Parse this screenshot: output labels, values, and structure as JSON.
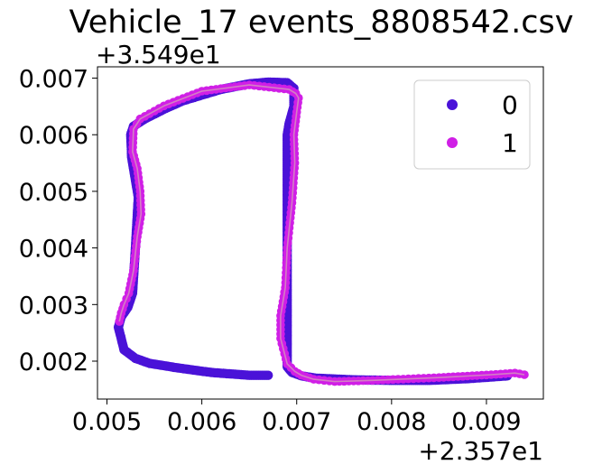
{
  "chart_data": {
    "type": "scatter",
    "title": "Vehicle_17 events_8808542.csv",
    "xlabel": "",
    "ylabel": "",
    "x_offset_label": "+2.357e1",
    "y_offset_label": "+3.549e1",
    "x_offset": 23.57,
    "y_offset": 35.49,
    "xlim": [
      0.0049,
      0.0096
    ],
    "ylim": [
      0.00133,
      0.0072
    ],
    "xticks": [
      0.005,
      0.006,
      0.007,
      0.008,
      0.009
    ],
    "xtick_labels": [
      "0.005",
      "0.006",
      "0.007",
      "0.008",
      "0.009"
    ],
    "yticks": [
      0.002,
      0.003,
      0.004,
      0.005,
      0.006,
      0.007
    ],
    "ytick_labels": [
      "0.002",
      "0.003",
      "0.004",
      "0.005",
      "0.006",
      "0.007"
    ],
    "grid": false,
    "legend_position": "top-right",
    "track_color": "#d47fc4",
    "series": [
      {
        "name": "0",
        "color": "#4a12d8",
        "path": [
          [
            0.00922,
            0.00174
          ],
          [
            0.0088,
            0.00169
          ],
          [
            0.0084,
            0.00166
          ],
          [
            0.008,
            0.00166
          ],
          [
            0.0076,
            0.00167
          ],
          [
            0.0072,
            0.0017
          ],
          [
            0.00705,
            0.00174
          ],
          [
            0.00695,
            0.0018
          ],
          [
            0.0069,
            0.0019
          ],
          [
            0.0069,
            0.006
          ],
          [
            0.00692,
            0.0062
          ],
          [
            0.00697,
            0.0065
          ],
          [
            0.00697,
            0.00682
          ],
          [
            0.0069,
            0.00692
          ],
          [
            0.0067,
            0.00693
          ],
          [
            0.0065,
            0.0069
          ],
          [
            0.0062,
            0.0068
          ],
          [
            0.006,
            0.0067
          ],
          [
            0.0058,
            0.0066
          ],
          [
            0.0056,
            0.00645
          ],
          [
            0.0054,
            0.00628
          ],
          [
            0.00528,
            0.00615
          ],
          [
            0.00525,
            0.006
          ],
          [
            0.00526,
            0.0056
          ],
          [
            0.0053,
            0.0052
          ],
          [
            0.00533,
            0.0049
          ],
          [
            0.0053,
            0.004
          ],
          [
            0.00527,
            0.0032
          ],
          [
            0.00522,
            0.00295
          ],
          [
            0.00515,
            0.00278
          ],
          [
            0.00512,
            0.0026
          ],
          [
            0.00518,
            0.0022
          ],
          [
            0.0053,
            0.00205
          ],
          [
            0.00545,
            0.00196
          ],
          [
            0.00575,
            0.00188
          ],
          [
            0.0061,
            0.0018
          ],
          [
            0.0065,
            0.00175
          ],
          [
            0.0067,
            0.00175
          ]
        ]
      },
      {
        "name": "1",
        "color": "#d01fe6",
        "path": [
          [
            0.0094,
            0.00176
          ],
          [
            0.0093,
            0.00179
          ],
          [
            0.00905,
            0.00176
          ],
          [
            0.0085,
            0.00171
          ],
          [
            0.0078,
            0.00166
          ],
          [
            0.0074,
            0.00164
          ],
          [
            0.00718,
            0.00168
          ],
          [
            0.00705,
            0.00175
          ],
          [
            0.00698,
            0.00182
          ],
          [
            0.0069,
            0.00195
          ],
          [
            0.00683,
            0.0024
          ],
          [
            0.00683,
            0.0028
          ],
          [
            0.00688,
            0.0033
          ],
          [
            0.0069,
            0.004
          ],
          [
            0.00695,
            0.0048
          ],
          [
            0.00698,
            0.0055
          ],
          [
            0.00697,
            0.006
          ],
          [
            0.007,
            0.0064
          ],
          [
            0.00702,
            0.00665
          ],
          [
            0.00699,
            0.00673
          ],
          [
            0.00692,
            0.0068
          ],
          [
            0.0065,
            0.00688
          ],
          [
            0.006,
            0.00677
          ],
          [
            0.0056,
            0.00651
          ],
          [
            0.00535,
            0.00628
          ],
          [
            0.00528,
            0.0061
          ],
          [
            0.00527,
            0.0057
          ],
          [
            0.00532,
            0.0054
          ],
          [
            0.00535,
            0.005
          ],
          [
            0.00536,
            0.0046
          ],
          [
            0.00532,
            0.0042
          ],
          [
            0.00528,
            0.0036
          ],
          [
            0.00523,
            0.0032
          ],
          [
            0.00518,
            0.003
          ],
          [
            0.00515,
            0.00285
          ],
          [
            0.00513,
            0.0027
          ]
        ]
      }
    ]
  }
}
